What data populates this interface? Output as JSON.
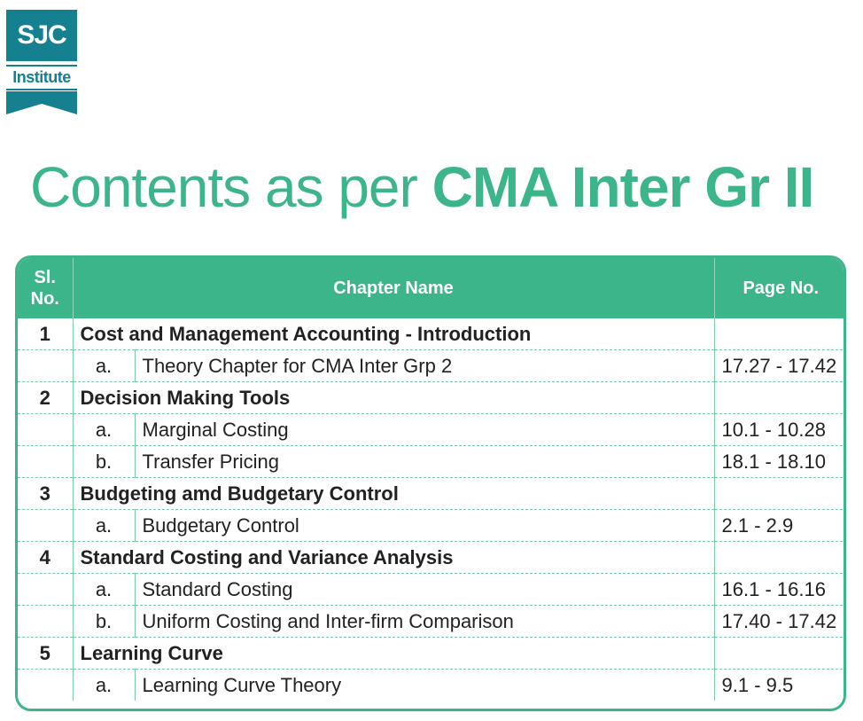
{
  "logo": {
    "top_text": "SJC",
    "bottom_text": "Institute"
  },
  "heading": {
    "normal": "Contents as per ",
    "bold": "CMA Inter Gr II"
  },
  "table": {
    "headers": {
      "sl_line1": "Sl.",
      "sl_line2": "No.",
      "chapter": "Chapter Name",
      "page": "Page No."
    },
    "chapters": [
      {
        "no": "1",
        "title": "Cost and Management Accounting - Introduction",
        "subs": [
          {
            "letter": "a.",
            "title": "Theory Chapter for CMA Inter Grp 2",
            "pages": "17.27 - 17.42"
          }
        ]
      },
      {
        "no": "2",
        "title": "Decision Making Tools",
        "subs": [
          {
            "letter": "a.",
            "title": "Marginal Costing",
            "pages": "10.1 - 10.28"
          },
          {
            "letter": "b.",
            "title": "Transfer Pricing",
            "pages": "18.1 - 18.10"
          }
        ]
      },
      {
        "no": "3",
        "title": "Budgeting amd Budgetary Control",
        "subs": [
          {
            "letter": "a.",
            "title": "Budgetary Control",
            "pages": "2.1 - 2.9"
          }
        ]
      },
      {
        "no": "4",
        "title": "Standard Costing and Variance Analysis",
        "subs": [
          {
            "letter": "a.",
            "title": "Standard Costing",
            "pages": "16.1 - 16.16"
          },
          {
            "letter": "b.",
            "title": "Uniform Costing and Inter-firm Comparison",
            "pages": "17.40 - 17.42"
          }
        ]
      },
      {
        "no": "5",
        "title": "Learning Curve",
        "subs": [
          {
            "letter": "a.",
            "title": "Learning Curve Theory",
            "pages": "9.1 - 9.5"
          }
        ]
      }
    ]
  },
  "colors": {
    "accent": "#3db58a",
    "logo": "#15808f"
  }
}
